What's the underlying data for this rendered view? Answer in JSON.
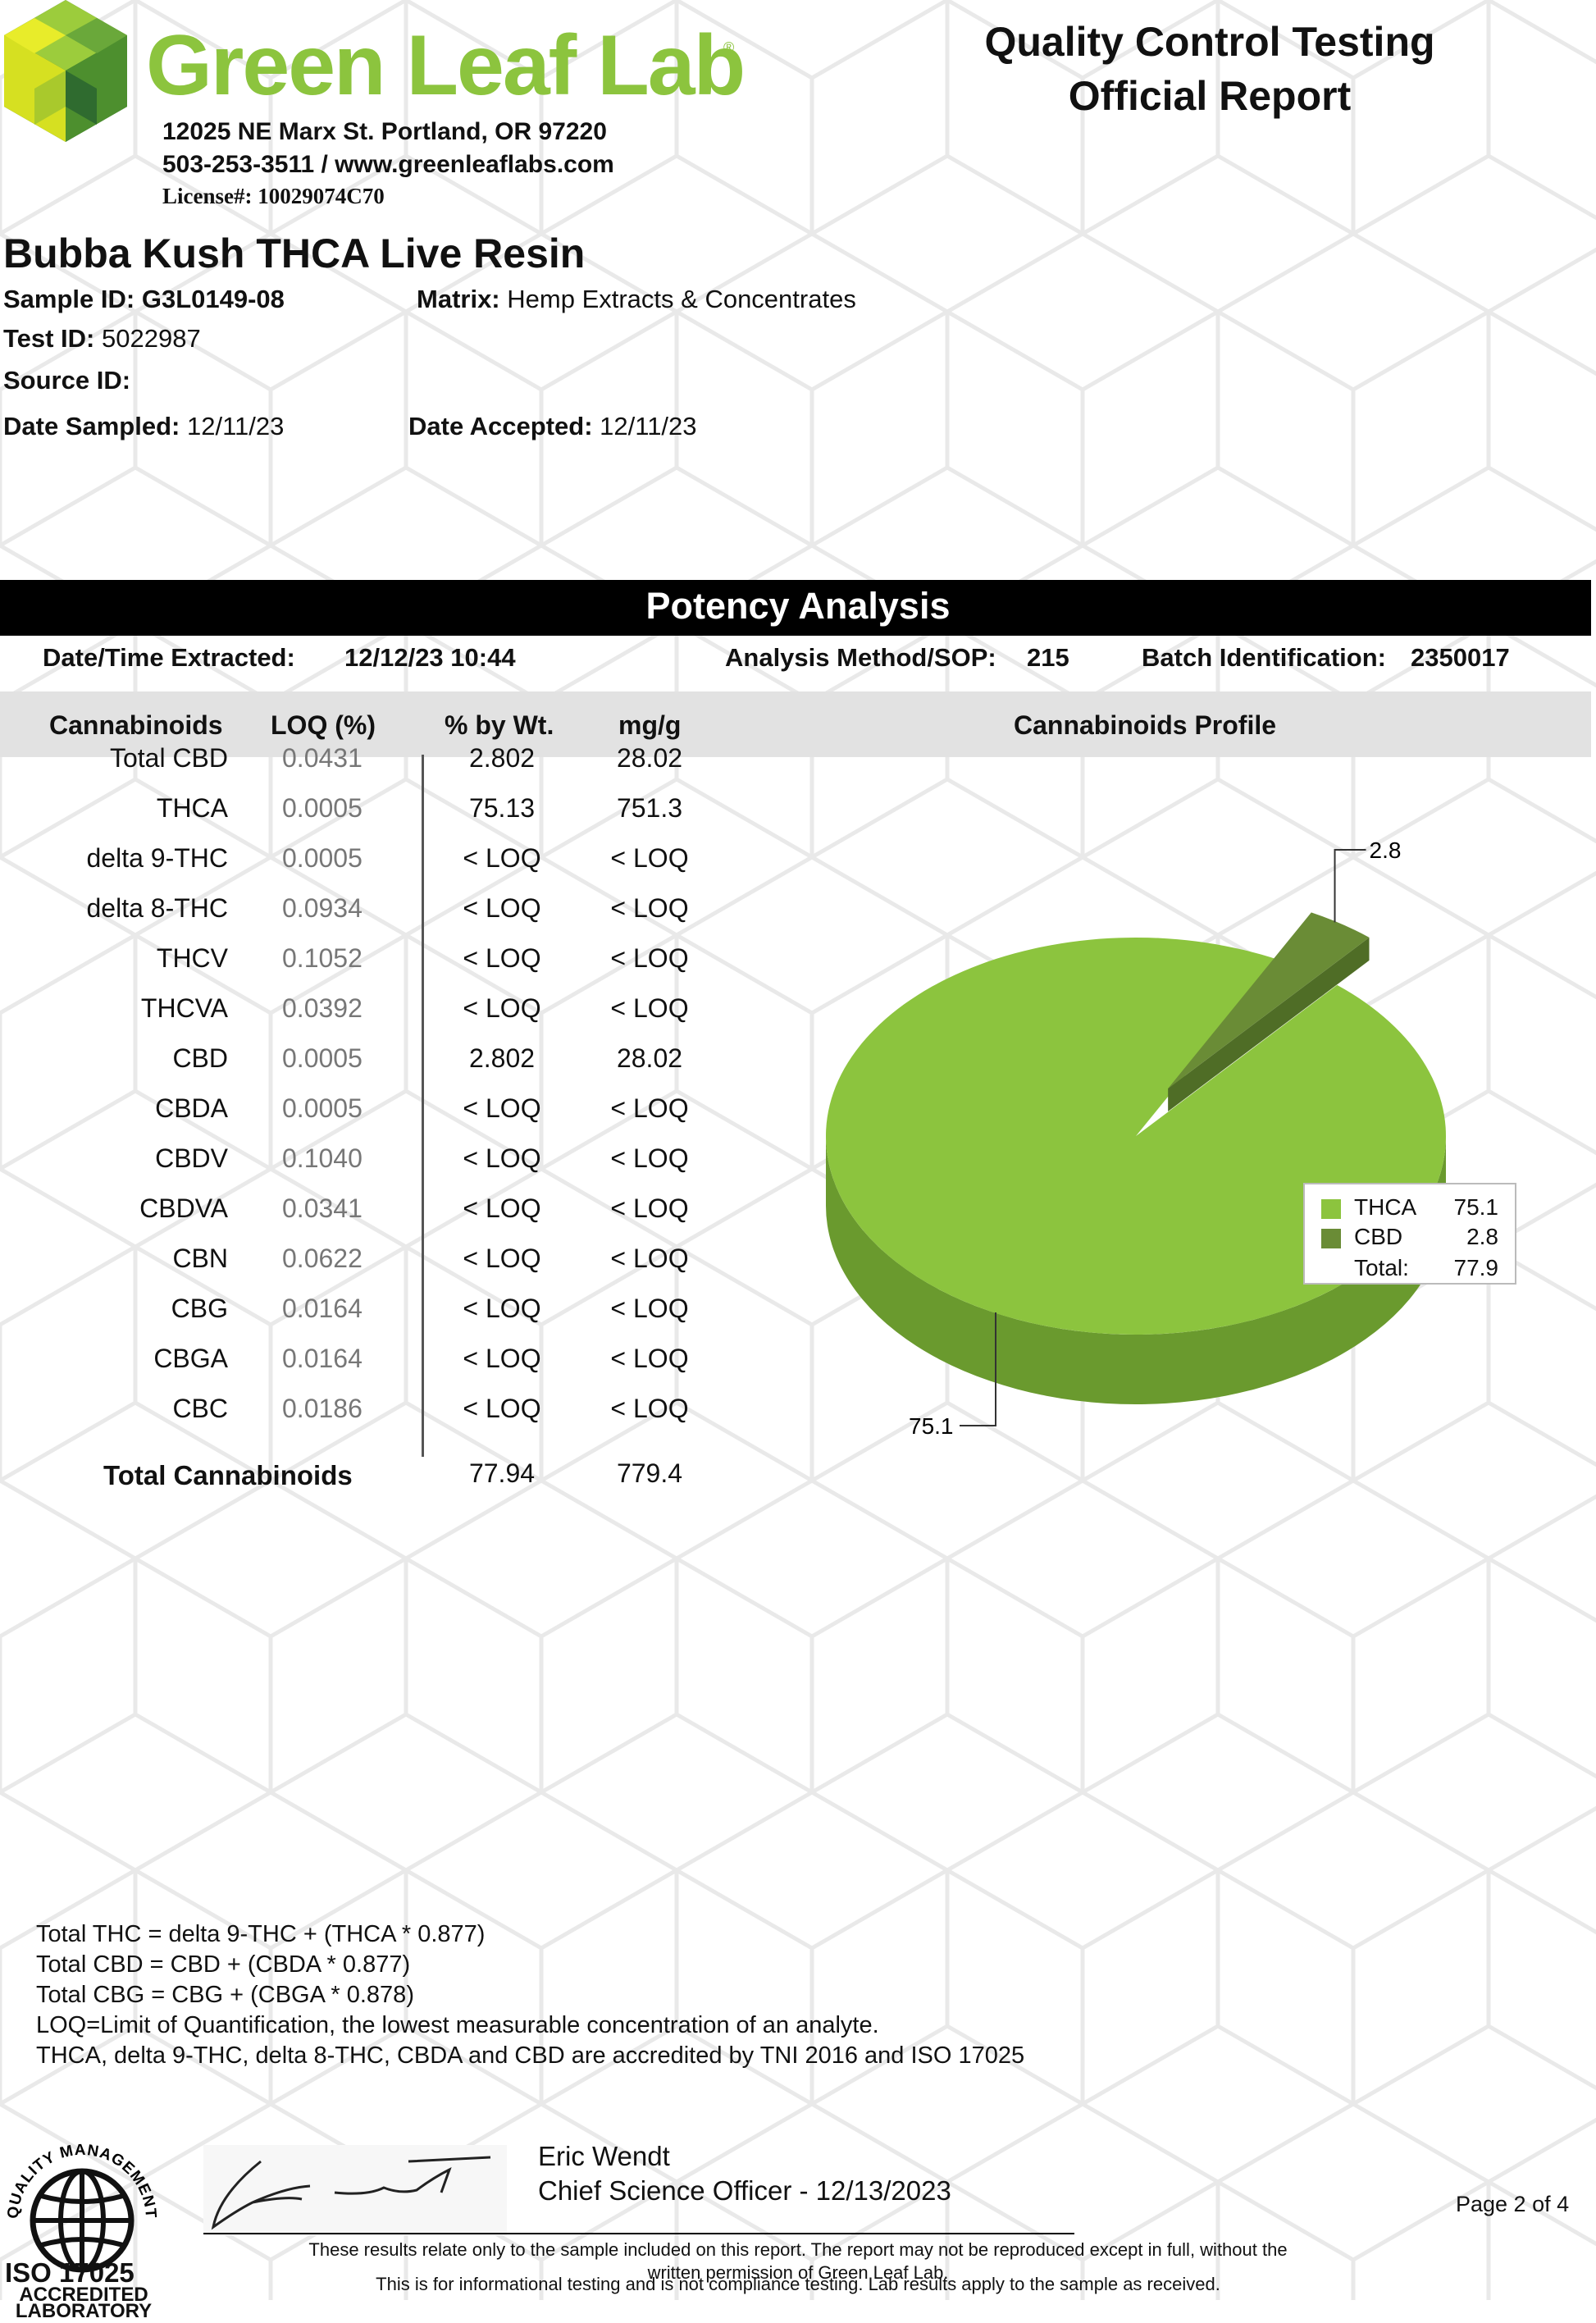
{
  "colors": {
    "brand_green": "#8cc43e",
    "thca_color": "#8cc43e",
    "cbd_color": "#6a8c36",
    "header_bar": "#000000"
  },
  "header": {
    "brand": "Green Leaf Lab",
    "address_line1": "12025 NE Marx St. Portland, OR 97220",
    "address_line2": "503-253-3511 / www.greenleaflabs.com",
    "license": "License#: 10029074C70",
    "report_title_line1": "Quality Control Testing",
    "report_title_line2": "Official Report"
  },
  "product": {
    "name": "Bubba Kush THCA Live Resin",
    "sample_id_label": "Sample ID:",
    "sample_id": "G3L0149-08",
    "matrix_label": "Matrix:",
    "matrix": "Hemp Extracts & Concentrates",
    "test_id_label": "Test ID:",
    "test_id": "5022987",
    "source_id_label": "Source ID:",
    "date_sampled_label": "Date Sampled:",
    "date_sampled": "12/11/23",
    "date_accepted_label": "Date Accepted:",
    "date_accepted": "12/11/23"
  },
  "potency": {
    "title": "Potency Analysis",
    "extracted_label": "Date/Time Extracted:",
    "extracted": "12/12/23  10:44",
    "method_label": "Analysis Method/SOP:",
    "method": "215",
    "batch_label": "Batch Identification:",
    "batch": "2350017"
  },
  "table": {
    "headers": [
      "Cannabinoids",
      "LOQ (%)",
      "% by Wt.",
      "mg/g"
    ],
    "rows": [
      {
        "name": "Total CBD",
        "loq": "0.0431",
        "pct": "2.802",
        "mg": "28.02"
      },
      {
        "name": "THCA",
        "loq": "0.0005",
        "pct": "75.13",
        "mg": "751.3"
      },
      {
        "name": "delta 9-THC",
        "loq": "0.0005",
        "pct": "< LOQ",
        "mg": "< LOQ"
      },
      {
        "name": "delta 8-THC",
        "loq": "0.0934",
        "pct": "< LOQ",
        "mg": "< LOQ"
      },
      {
        "name": "THCV",
        "loq": "0.1052",
        "pct": "< LOQ",
        "mg": "< LOQ"
      },
      {
        "name": "THCVA",
        "loq": "0.0392",
        "pct": "< LOQ",
        "mg": "< LOQ"
      },
      {
        "name": "CBD",
        "loq": "0.0005",
        "pct": "2.802",
        "mg": "28.02"
      },
      {
        "name": "CBDA",
        "loq": "0.0005",
        "pct": "< LOQ",
        "mg": "< LOQ"
      },
      {
        "name": "CBDV",
        "loq": "0.1040",
        "pct": "< LOQ",
        "mg": "< LOQ"
      },
      {
        "name": "CBDVA",
        "loq": "0.0341",
        "pct": "< LOQ",
        "mg": "< LOQ"
      },
      {
        "name": "CBN",
        "loq": "0.0622",
        "pct": "< LOQ",
        "mg": "< LOQ"
      },
      {
        "name": "CBG",
        "loq": "0.0164",
        "pct": "< LOQ",
        "mg": "< LOQ"
      },
      {
        "name": "CBGA",
        "loq": "0.0164",
        "pct": "< LOQ",
        "mg": "< LOQ"
      },
      {
        "name": "CBC",
        "loq": "0.0186",
        "pct": "< LOQ",
        "mg": "< LOQ"
      }
    ],
    "total_label": "Total Cannabinoids",
    "total_pct": "77.94",
    "total_mg": "779.4"
  },
  "chart_data": {
    "type": "pie",
    "title": "Cannabinoids Profile",
    "labels": [
      "THCA",
      "CBD"
    ],
    "values": [
      75.1,
      2.8
    ],
    "data_labels": [
      "75.1",
      "2.8"
    ],
    "legend": {
      "placement": "right",
      "total_label": "Total:",
      "total": "77.9",
      "entries": [
        {
          "name": "THCA",
          "value": "75.1"
        },
        {
          "name": "CBD",
          "value": "2.8"
        }
      ]
    }
  },
  "notes": [
    "Total THC =  delta 9-THC + (THCA * 0.877)",
    "Total CBD =  CBD + (CBDA * 0.877)",
    "Total CBG = CBG + (CBGA * 0.878)",
    "LOQ=Limit of Quantification, the lowest measurable concentration of an analyte.",
    "THCA, delta 9-THC, delta 8-THC, CBDA and CBD are accredited by TNI 2016 and ISO 17025"
  ],
  "footer": {
    "signer_name": "Eric Wendt",
    "signer_title": "Chief Science Officer - 12/13/2023",
    "page": "Page 2 of 4",
    "iso_line1": "ISO 17025",
    "iso_line2": "ACCREDITED",
    "iso_line3": "LABORATORY",
    "iso_seal_text": "QUALITY MANAGEMENT SYSTEM",
    "disclaimer1": "These results relate only to the sample included on this report. The report may not be reproduced except in full, without the",
    "disclaimer2": "written permission of Green Leaf Lab.",
    "disclaimer3": "This is for informational testing and is not compliance testing. Lab results apply to the sample as received."
  }
}
